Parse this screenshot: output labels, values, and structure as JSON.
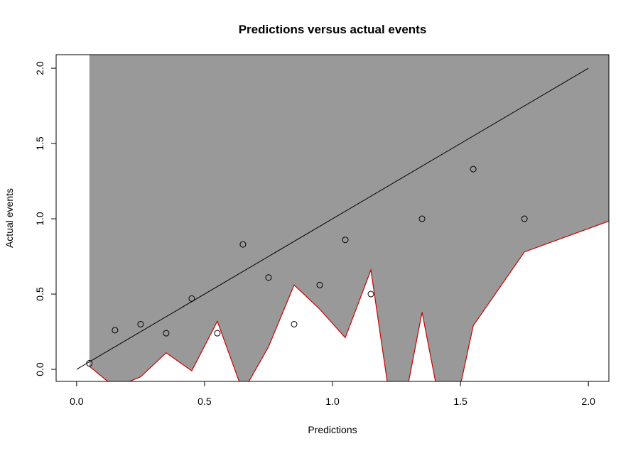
{
  "chart_data": {
    "type": "scatter",
    "title": "Predictions versus actual events",
    "x_label": "Predictions",
    "y_label": "Actual events",
    "x": [
      0.05,
      0.15,
      0.25,
      0.35,
      0.45,
      0.55,
      0.65,
      0.75,
      0.85,
      0.95,
      1.05,
      1.15,
      1.35,
      1.55,
      1.75
    ],
    "values": [
      0.04,
      0.26,
      0.3,
      0.24,
      0.47,
      0.24,
      0.83,
      0.61,
      0.3,
      0.56,
      0.86,
      0.5,
      1.0,
      1.33,
      1.0
    ],
    "color": "#000000",
    "band": {
      "x": [
        0.05,
        0.15,
        0.25,
        0.35,
        0.45,
        0.55,
        0.65,
        0.75,
        0.85,
        0.95,
        1.05,
        1.15,
        1.25,
        1.35,
        1.45,
        1.55,
        1.75,
        2.25
      ],
      "lower": [
        0.02,
        -0.12,
        -0.05,
        0.11,
        -0.01,
        0.32,
        -0.15,
        0.15,
        0.56,
        0.4,
        0.21,
        0.66,
        -0.5,
        0.38,
        -0.5,
        0.29,
        0.78,
        1.09
      ],
      "fill": "#999999",
      "edge": "#cc0000"
    },
    "reference_line": {
      "x": [
        0,
        2
      ],
      "y": [
        0,
        2
      ],
      "color": "#000000"
    },
    "xlim": [
      -0.08,
      2.08
    ],
    "ylim": [
      -0.08,
      2.09
    ],
    "xticks": [
      {
        "value": 0,
        "label": "0.0"
      },
      {
        "value": 0.5,
        "label": "0.5"
      },
      {
        "value": 1,
        "label": "1.0"
      },
      {
        "value": 1.5,
        "label": "1.5"
      },
      {
        "value": 2,
        "label": "2.0"
      }
    ],
    "yticks": [
      {
        "value": 0,
        "label": "0.0"
      },
      {
        "value": 0.5,
        "label": "0.5"
      },
      {
        "value": 1,
        "label": "1.0"
      },
      {
        "value": 1.5,
        "label": "1.5"
      },
      {
        "value": 2,
        "label": "2.0"
      }
    ]
  }
}
